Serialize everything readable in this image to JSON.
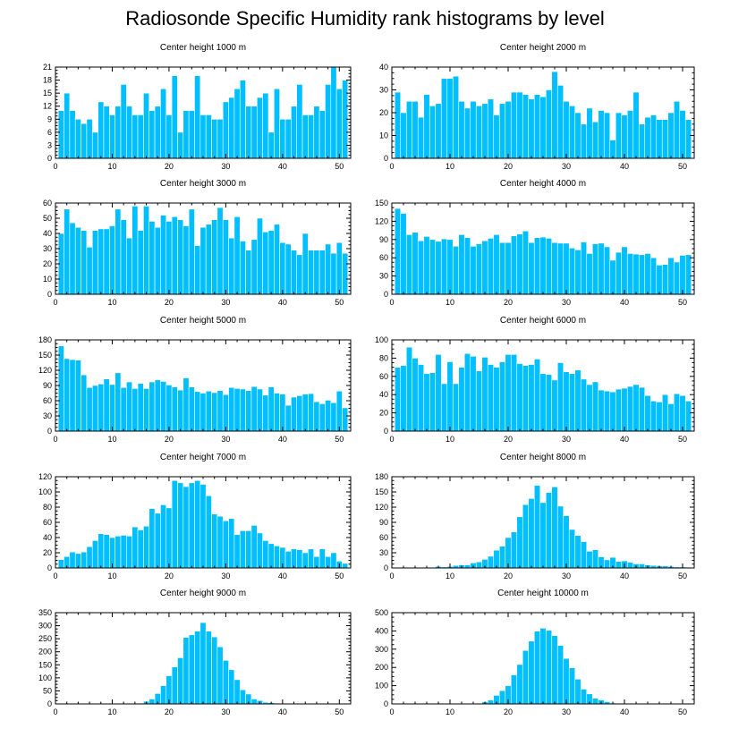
{
  "title": "Radiosonde Specific Humidity rank histograms by level",
  "chart_data": [
    {
      "type": "bar",
      "title": "Center height 1000 m",
      "x_start": 1,
      "xlim": [
        0,
        52
      ],
      "xticks": [
        0,
        10,
        20,
        30,
        40,
        50
      ],
      "ylim": [
        0,
        21
      ],
      "yticks": [
        0,
        3,
        6,
        9,
        12,
        15,
        18,
        21
      ],
      "values": [
        11,
        15,
        11,
        9,
        8,
        9,
        6,
        13,
        12,
        10,
        12,
        17,
        12,
        10,
        10,
        15,
        11,
        12,
        16,
        10,
        19,
        6,
        11,
        11,
        19,
        10,
        10,
        9,
        9,
        13,
        14,
        16,
        18,
        12,
        12,
        14,
        15,
        6,
        16,
        9,
        9,
        12,
        17,
        10,
        10,
        12,
        11,
        17,
        21,
        16,
        18
      ]
    },
    {
      "type": "bar",
      "title": "Center height 2000 m",
      "x_start": 1,
      "xlim": [
        0,
        52
      ],
      "xticks": [
        0,
        10,
        20,
        30,
        40,
        50
      ],
      "ylim": [
        0,
        40
      ],
      "yticks": [
        0,
        10,
        20,
        30,
        40
      ],
      "values": [
        29,
        20,
        25,
        25,
        18,
        28,
        23,
        24,
        35,
        35,
        36,
        25,
        22,
        25,
        23,
        24,
        26,
        19,
        24,
        25,
        29,
        29,
        28,
        26,
        28,
        27,
        30,
        38,
        32,
        25,
        23,
        20,
        15,
        22,
        16,
        21,
        20,
        8,
        20,
        19,
        21,
        29,
        15,
        18,
        19,
        17,
        17,
        20,
        25,
        21,
        17
      ]
    },
    {
      "type": "bar",
      "title": "Center height 3000 m",
      "x_start": 1,
      "xlim": [
        0,
        52
      ],
      "xticks": [
        0,
        10,
        20,
        30,
        40,
        50
      ],
      "ylim": [
        0,
        60
      ],
      "yticks": [
        0,
        10,
        20,
        30,
        40,
        50,
        60
      ],
      "values": [
        40,
        56,
        47,
        44,
        42,
        31,
        42,
        43,
        43,
        45,
        56,
        49,
        37,
        58,
        42,
        58,
        48,
        44,
        52,
        48,
        51,
        49,
        45,
        56,
        32,
        44,
        46,
        49,
        57,
        49,
        37,
        51,
        35,
        29,
        36,
        50,
        41,
        42,
        46,
        34,
        33,
        29,
        26,
        40,
        29,
        29,
        29,
        33,
        27,
        34,
        27
      ]
    },
    {
      "type": "bar",
      "title": "Center height 4000 m",
      "x_start": 1,
      "xlim": [
        0,
        52
      ],
      "xticks": [
        0,
        10,
        20,
        30,
        40,
        50
      ],
      "ylim": [
        0,
        150
      ],
      "yticks": [
        0,
        30,
        60,
        90,
        120,
        150
      ],
      "values": [
        141,
        133,
        98,
        102,
        88,
        95,
        90,
        87,
        91,
        90,
        79,
        98,
        93,
        79,
        83,
        88,
        92,
        98,
        85,
        85,
        96,
        99,
        104,
        85,
        93,
        94,
        92,
        85,
        84,
        84,
        76,
        73,
        86,
        67,
        83,
        84,
        78,
        56,
        69,
        78,
        67,
        66,
        65,
        67,
        60,
        48,
        49,
        60,
        53,
        64,
        65
      ]
    },
    {
      "type": "bar",
      "title": "Center height 5000 m",
      "x_start": 1,
      "xlim": [
        0,
        52
      ],
      "xticks": [
        0,
        10,
        20,
        30,
        40,
        50
      ],
      "ylim": [
        0,
        180
      ],
      "yticks": [
        0,
        30,
        60,
        90,
        120,
        150,
        180
      ],
      "values": [
        168,
        143,
        141,
        140,
        111,
        86,
        90,
        93,
        103,
        92,
        115,
        86,
        97,
        84,
        94,
        84,
        97,
        101,
        98,
        91,
        87,
        81,
        105,
        87,
        78,
        75,
        79,
        76,
        80,
        72,
        86,
        84,
        83,
        80,
        88,
        83,
        71,
        87,
        75,
        73,
        51,
        67,
        70,
        73,
        74,
        58,
        54,
        61,
        56,
        79,
        46
      ]
    },
    {
      "type": "bar",
      "title": "Center height 6000 m",
      "x_start": 1,
      "xlim": [
        0,
        52
      ],
      "xticks": [
        0,
        10,
        20,
        30,
        40,
        50
      ],
      "ylim": [
        0,
        100
      ],
      "yticks": [
        0,
        20,
        40,
        60,
        80,
        100
      ],
      "values": [
        70,
        72,
        92,
        80,
        73,
        63,
        64,
        84,
        52,
        76,
        52,
        70,
        85,
        82,
        66,
        81,
        73,
        70,
        76,
        84,
        84,
        74,
        72,
        73,
        79,
        63,
        62,
        56,
        75,
        65,
        63,
        67,
        57,
        51,
        54,
        45,
        44,
        43,
        46,
        47,
        49,
        51,
        48,
        39,
        33,
        32,
        40,
        30,
        41,
        39,
        33
      ]
    },
    {
      "type": "bar",
      "title": "Center height 7000 m",
      "x_start": 1,
      "xlim": [
        0,
        52
      ],
      "xticks": [
        0,
        10,
        20,
        30,
        40,
        50
      ],
      "ylim": [
        0,
        120
      ],
      "yticks": [
        0,
        20,
        40,
        60,
        80,
        100,
        120
      ],
      "values": [
        11,
        15,
        21,
        19,
        21,
        28,
        36,
        45,
        44,
        40,
        42,
        43,
        42,
        54,
        50,
        55,
        78,
        72,
        83,
        79,
        115,
        112,
        107,
        112,
        115,
        110,
        95,
        71,
        68,
        62,
        65,
        44,
        49,
        49,
        56,
        46,
        36,
        32,
        29,
        27,
        22,
        25,
        24,
        20,
        25,
        15,
        25,
        15,
        20,
        9,
        6
      ]
    },
    {
      "type": "bar",
      "title": "Center height 8000 m",
      "x_start": 1,
      "xlim": [
        0,
        52
      ],
      "xticks": [
        0,
        10,
        20,
        30,
        40,
        50
      ],
      "ylim": [
        0,
        180
      ],
      "yticks": [
        0,
        30,
        60,
        90,
        120,
        150,
        180
      ],
      "values": [
        0,
        0,
        0,
        0,
        0,
        0,
        0,
        3,
        2,
        3,
        5,
        6,
        6,
        10,
        12,
        17,
        23,
        35,
        43,
        60,
        71,
        101,
        125,
        137,
        163,
        129,
        149,
        160,
        122,
        103,
        76,
        64,
        52,
        33,
        36,
        22,
        16,
        21,
        13,
        14,
        11,
        8,
        8,
        6,
        5,
        4,
        4,
        3,
        2,
        2,
        1
      ]
    },
    {
      "type": "bar",
      "title": "Center height 9000 m",
      "x_start": 1,
      "xlim": [
        0,
        52
      ],
      "xticks": [
        0,
        10,
        20,
        30,
        40,
        50
      ],
      "ylim": [
        0,
        350
      ],
      "yticks": [
        0,
        50,
        100,
        150,
        200,
        250,
        300,
        350
      ],
      "values": [
        0,
        0,
        0,
        0,
        0,
        0,
        0,
        0,
        0,
        0,
        0,
        0,
        0,
        0,
        3,
        10,
        19,
        40,
        70,
        108,
        142,
        177,
        255,
        265,
        279,
        312,
        279,
        257,
        219,
        167,
        131,
        93,
        54,
        38,
        19,
        13,
        6,
        5,
        3,
        2,
        1,
        1,
        1,
        1,
        1,
        1,
        1,
        1,
        1,
        0,
        0
      ]
    },
    {
      "type": "bar",
      "title": "Center height 10000 m",
      "x_start": 1,
      "xlim": [
        0,
        52
      ],
      "xticks": [
        0,
        10,
        20,
        30,
        40,
        50
      ],
      "ylim": [
        0,
        500
      ],
      "yticks": [
        0,
        100,
        200,
        300,
        400,
        500
      ],
      "values": [
        0,
        0,
        0,
        0,
        0,
        0,
        0,
        0,
        0,
        0,
        0,
        0,
        0,
        0,
        3,
        11,
        21,
        47,
        73,
        100,
        159,
        216,
        293,
        344,
        399,
        415,
        403,
        374,
        320,
        249,
        198,
        136,
        81,
        55,
        31,
        22,
        12,
        5,
        3,
        2,
        1,
        1,
        1,
        1,
        0,
        0,
        0,
        0,
        0,
        0,
        0
      ]
    }
  ]
}
